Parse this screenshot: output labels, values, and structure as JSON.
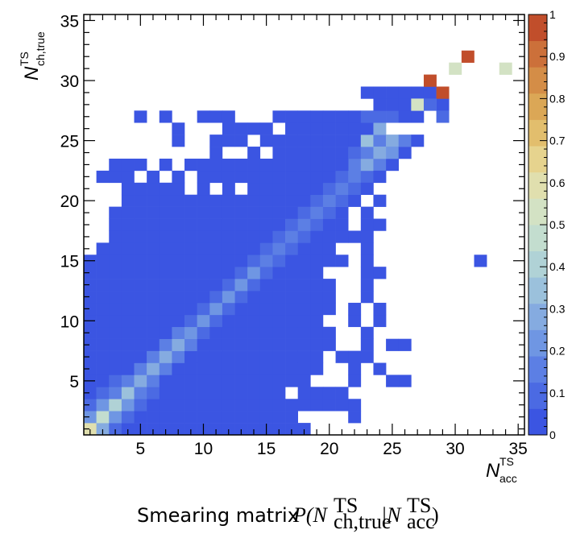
{
  "chart_data": {
    "type": "heatmap",
    "title": "",
    "xlabel": "N^TS_acc",
    "xlabel_main": "N",
    "xlabel_sup": "TS",
    "xlabel_sub": "acc",
    "ylabel": "N^TS_ch,true",
    "ylabel_main": "N",
    "ylabel_sup": "TS",
    "ylabel_sub": "ch,true",
    "xlim": [
      0.5,
      35.5
    ],
    "ylim": [
      0.5,
      35.5
    ],
    "x_ticks": [
      5,
      10,
      15,
      20,
      25,
      30,
      35
    ],
    "y_ticks": [
      5,
      10,
      15,
      20,
      25,
      30,
      35
    ],
    "colorbar": {
      "range": [
        0,
        1
      ],
      "ticks": [
        0,
        0.1,
        0.2,
        0.3,
        0.4,
        0.5,
        0.6,
        0.7,
        0.8,
        0.9,
        1
      ],
      "tick_labels": [
        "0",
        "0.1",
        "0.2",
        "0.3",
        "0.4",
        "0.5",
        "0.6",
        "0.7",
        "0.8",
        "0.9",
        "1"
      ],
      "palette": [
        "#3b55e2",
        "#4b6ae3",
        "#5c7fe4",
        "#6f96e3",
        "#85abe0",
        "#9bc1dc",
        "#b0d2d6",
        "#c3ddcf",
        "#d3e2c4",
        "#e0dfae",
        "#e6d38e",
        "#e2be6d",
        "#dba756",
        "#d48d47",
        "#cc703a",
        "#c14e2b"
      ]
    },
    "diagonal_values": [
      0.62,
      0.45,
      0.38,
      0.33,
      0.3,
      0.28,
      0.26,
      0.25,
      0.23,
      0.22,
      0.21,
      0.2,
      0.19,
      0.19,
      0.18,
      0.18,
      0.17,
      0.17,
      0.16,
      0.16,
      0.15,
      0.15,
      0.25,
      0.3,
      0.25
    ],
    "cells_low": "10-17,2;4-18,3;3-20,4;1-20,5;1-19,6;1-19,7;1-20,8;1-21,9;1-21,10;1-20,11;1-20,12;1-20,13;1-20,14;1-23,15;1-22,16;2-22,17;2-22,18;3-23,19;1-23,20;4-23,21;3-24,22;5-24,23;7-25,24;3-24,25;8-24,26;6-24,27;11-24,28;13-24,29;14-25,30;11-24,31;12-25,32;16-25,33;13-26,34;19-26,35;22-27,36;23-28,37;24-29,38;22-28,39;23-29,40;25-30,41;27-30,42;28-31,43;30-31,44;26-26,2;28-28,2;30-30,2;32-32,2;27-27,3;29-29,3;31-31,3;33-33,3;31-31,4;33-33,4;35-35,4;23-26,5;28-31,5;36-36,5;23-27,6;29-30,6;32-32,6;23-25,7;27-30,7;23-24,8;26-29,8;23-24,9;26-29,9;23-26,10;29-31,10;23-26,11;28-28,11;30-30,11;23-24,12;27-29,12;23-24,13;27-28,13;25-28,14;30-30,14;25-26,15;29-30,15;28-29,16;31-31,16;28-28,17;30-30,17;29-30,18;29-31,19;30-31,20;31-31,21;33-33,21;30-31,22;30-31,23;24-25,24;34-34,24;28-29,25;26-27,26;28-29,27;30-31,28;29-29,29;32-33,30;29-30,31;19-19,32;21-23,33;24-25,34;22-22,35;26-28,36;31-31,37;33-33,38;36-36,39;36-37,40;31-31,41;38-38,42;39-40,43;42-42,44;48-49,45;54-56,46;60-60,47;68-70,48;76-76,49;84-84,50;92-92,51",
    "cells_high": [
      {
        "x": 1,
        "y": 1,
        "v": 0.62
      },
      {
        "x": 2,
        "y": 2,
        "v": 0.45
      },
      {
        "x": 28,
        "y": 30,
        "v": 0.95
      },
      {
        "x": 29,
        "y": 29,
        "v": 0.95
      },
      {
        "x": 31,
        "y": 32,
        "v": 0.96
      },
      {
        "x": 30,
        "y": 31,
        "v": 0.5
      },
      {
        "x": 34,
        "y": 31,
        "v": 0.5
      },
      {
        "x": 27,
        "y": 28,
        "v": 0.5
      },
      {
        "x": 28,
        "y": 28,
        "v": 0.12
      },
      {
        "x": 29,
        "y": 27,
        "v": 0.08
      },
      {
        "x": 23,
        "y": 27,
        "v": 0.08
      },
      {
        "x": 24,
        "y": 27,
        "v": 0.1
      },
      {
        "x": 25,
        "y": 27,
        "v": 0.08
      },
      {
        "x": 24,
        "y": 26,
        "v": 0.3
      },
      {
        "x": 23,
        "y": 25,
        "v": 0.32
      },
      {
        "x": 25,
        "y": 24,
        "v": 0.22
      }
    ]
  },
  "caption": {
    "text": "Smearing matrix",
    "formula_prefix": "P(N",
    "formula_sup1": "TS",
    "formula_sub1": "ch,true",
    "formula_bar": "|N",
    "formula_sup2": "TS",
    "formula_sub2": "acc",
    "formula_close": ")"
  }
}
